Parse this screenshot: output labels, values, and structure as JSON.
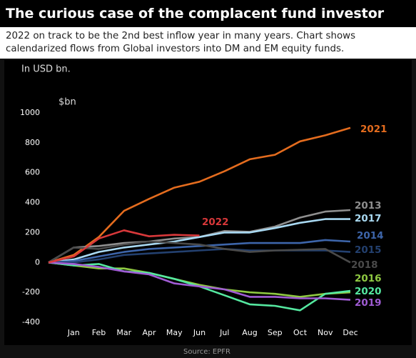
{
  "header": {
    "title": "The curious case of the complacent fund investor",
    "subtitle": "2022 on track to be the 2nd best inflow year in many years. Chart shows calendarized flows from Global investors into DM and EM equity funds."
  },
  "chart_data": {
    "type": "line",
    "note": "In USD bn.",
    "y_label": "$bn",
    "x": [
      0,
      1,
      2,
      3,
      4,
      5,
      6,
      7,
      8,
      9,
      10,
      11,
      12
    ],
    "xlim": [
      0,
      12
    ],
    "xticks": [
      {
        "value": 1,
        "label": "Jan"
      },
      {
        "value": 2,
        "label": "Feb"
      },
      {
        "value": 3,
        "label": "Mar"
      },
      {
        "value": 4,
        "label": "Apr"
      },
      {
        "value": 5,
        "label": "May"
      },
      {
        "value": 6,
        "label": "Jun"
      },
      {
        "value": 7,
        "label": "Jul"
      },
      {
        "value": 8,
        "label": "Aug"
      },
      {
        "value": 9,
        "label": "Sep"
      },
      {
        "value": 10,
        "label": "Oct"
      },
      {
        "value": 11,
        "label": "Nov"
      },
      {
        "value": 12,
        "label": "Dec"
      }
    ],
    "ylim": [
      -400,
      1000
    ],
    "yticks": [
      -400,
      -200,
      0,
      200,
      400,
      600,
      800,
      1000
    ],
    "grid": false,
    "series": [
      {
        "name": "2021",
        "color": "#e46c1e",
        "values": [
          0,
          50,
          170,
          345,
          425,
          500,
          540,
          610,
          690,
          720,
          810,
          850,
          900
        ]
      },
      {
        "name": "2013",
        "color": "#8f8f8f",
        "values": [
          0,
          100,
          110,
          130,
          140,
          160,
          170,
          210,
          205,
          240,
          300,
          340,
          350
        ]
      },
      {
        "name": "2017",
        "color": "#a9d9f2",
        "values": [
          0,
          20,
          70,
          100,
          120,
          140,
          170,
          200,
          200,
          230,
          265,
          290,
          290
        ]
      },
      {
        "name": "2014",
        "color": "#3d65aa",
        "values": [
          0,
          10,
          40,
          70,
          90,
          100,
          110,
          120,
          130,
          130,
          130,
          150,
          140
        ]
      },
      {
        "name": "2015",
        "color": "#23406f",
        "values": [
          0,
          0,
          20,
          50,
          60,
          70,
          80,
          90,
          80,
          80,
          80,
          80,
          70
        ]
      },
      {
        "name": "2018",
        "color": "#4a4a4a",
        "values": [
          0,
          100,
          90,
          120,
          140,
          130,
          120,
          90,
          70,
          80,
          85,
          90,
          0
        ]
      },
      {
        "name": "2016",
        "color": "#8fc942",
        "values": [
          0,
          -20,
          -40,
          -40,
          -70,
          -110,
          -150,
          -180,
          -200,
          -210,
          -230,
          -210,
          -200
        ]
      },
      {
        "name": "2020",
        "color": "#55e8a0",
        "values": [
          0,
          -20,
          -10,
          -60,
          -70,
          -110,
          -160,
          -220,
          -280,
          -290,
          -320,
          -210,
          -190
        ]
      },
      {
        "name": "2019",
        "color": "#a05cd4",
        "values": [
          0,
          -10,
          -30,
          -60,
          -80,
          -140,
          -160,
          -180,
          -230,
          -230,
          -240,
          -240,
          -250
        ]
      },
      {
        "name": "2022",
        "color": "#d8383a",
        "values": [
          0,
          40,
          160,
          215,
          175,
          185,
          180,
          null,
          null,
          null,
          null,
          null,
          null
        ]
      }
    ]
  },
  "footer": {
    "source": "Source: EPFR"
  }
}
